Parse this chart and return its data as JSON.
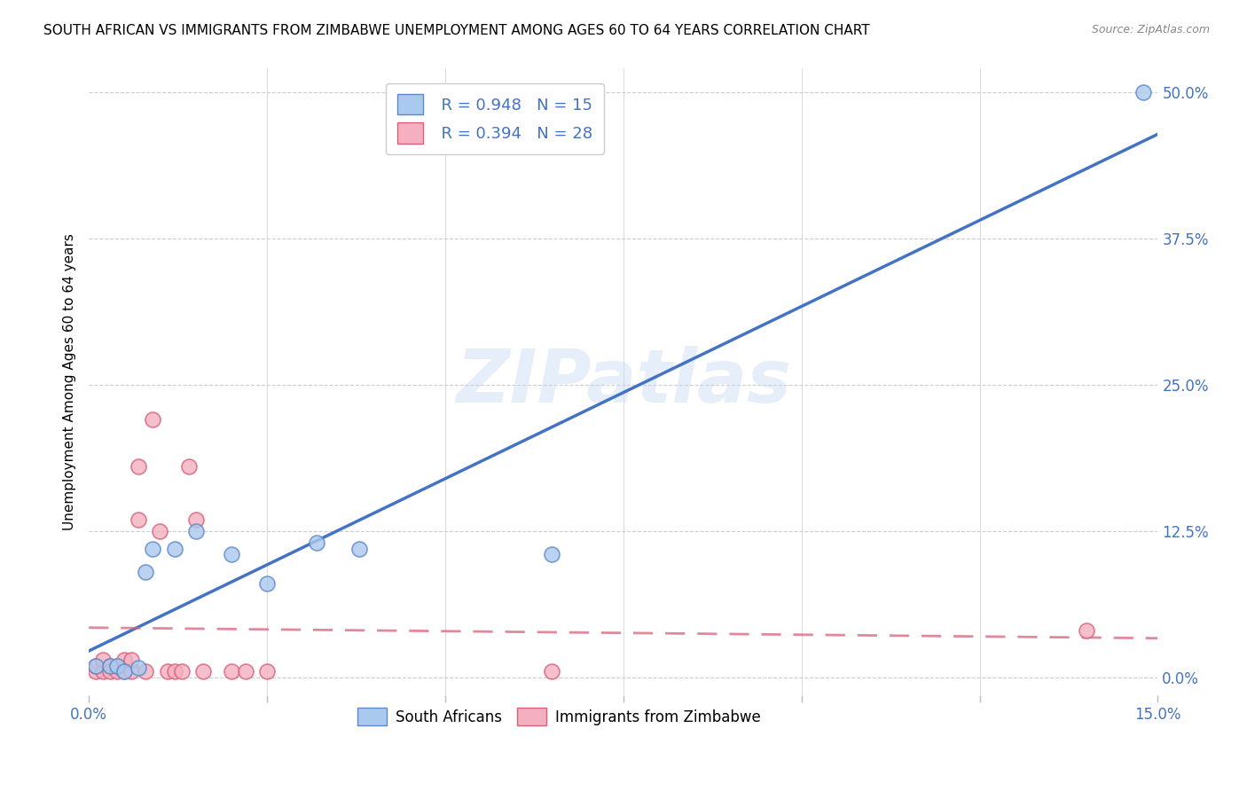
{
  "title": "SOUTH AFRICAN VS IMMIGRANTS FROM ZIMBABWE UNEMPLOYMENT AMONG AGES 60 TO 64 YEARS CORRELATION CHART",
  "source": "Source: ZipAtlas.com",
  "ylabel": "Unemployment Among Ages 60 to 64 years",
  "watermark": "ZIPatlas",
  "south_african": {
    "label": "South Africans",
    "color": "#aac9ee",
    "edge_color": "#5b8ac9",
    "line_color": "#4472c4",
    "R": 0.948,
    "N": 15,
    "x": [
      0.001,
      0.003,
      0.004,
      0.005,
      0.007,
      0.008,
      0.009,
      0.012,
      0.015,
      0.02,
      0.025,
      0.032,
      0.038,
      0.065,
      0.148
    ],
    "y": [
      0.01,
      0.01,
      0.01,
      0.005,
      0.008,
      0.09,
      0.11,
      0.11,
      0.125,
      0.105,
      0.08,
      0.115,
      0.11,
      0.105,
      0.5
    ]
  },
  "zimbabwe": {
    "label": "Immigrants from Zimbabwe",
    "color": "#f4afc0",
    "edge_color": "#d9607a",
    "line_color": "#d9607a",
    "R": 0.394,
    "N": 28,
    "x": [
      0.001,
      0.001,
      0.002,
      0.002,
      0.003,
      0.003,
      0.004,
      0.004,
      0.005,
      0.005,
      0.006,
      0.006,
      0.007,
      0.007,
      0.008,
      0.009,
      0.01,
      0.011,
      0.012,
      0.013,
      0.014,
      0.015,
      0.016,
      0.02,
      0.022,
      0.025,
      0.065,
      0.14
    ],
    "y": [
      0.005,
      0.01,
      0.005,
      0.015,
      0.01,
      0.005,
      0.005,
      0.01,
      0.005,
      0.015,
      0.005,
      0.015,
      0.135,
      0.18,
      0.005,
      0.22,
      0.125,
      0.005,
      0.005,
      0.005,
      0.18,
      0.135,
      0.005,
      0.005,
      0.005,
      0.005,
      0.005,
      0.04
    ]
  },
  "xlim": [
    0.0,
    0.15
  ],
  "ylim": [
    -0.015,
    0.52
  ],
  "yticks": [
    0.0,
    0.125,
    0.25,
    0.375,
    0.5
  ],
  "ytick_labels": [
    "0.0%",
    "12.5%",
    "25.0%",
    "37.5%",
    "50.0%"
  ],
  "xticks": [
    0.0,
    0.025,
    0.05,
    0.075,
    0.1,
    0.125,
    0.15
  ],
  "xtick_labels": [
    "0.0%",
    "",
    "",
    "",
    "",
    "",
    "15.0%"
  ],
  "bg_color": "#ffffff",
  "grid_color": "#cccccc",
  "title_fontsize": 11,
  "source_fontsize": 9,
  "axis_tick_color": "#4472c4"
}
